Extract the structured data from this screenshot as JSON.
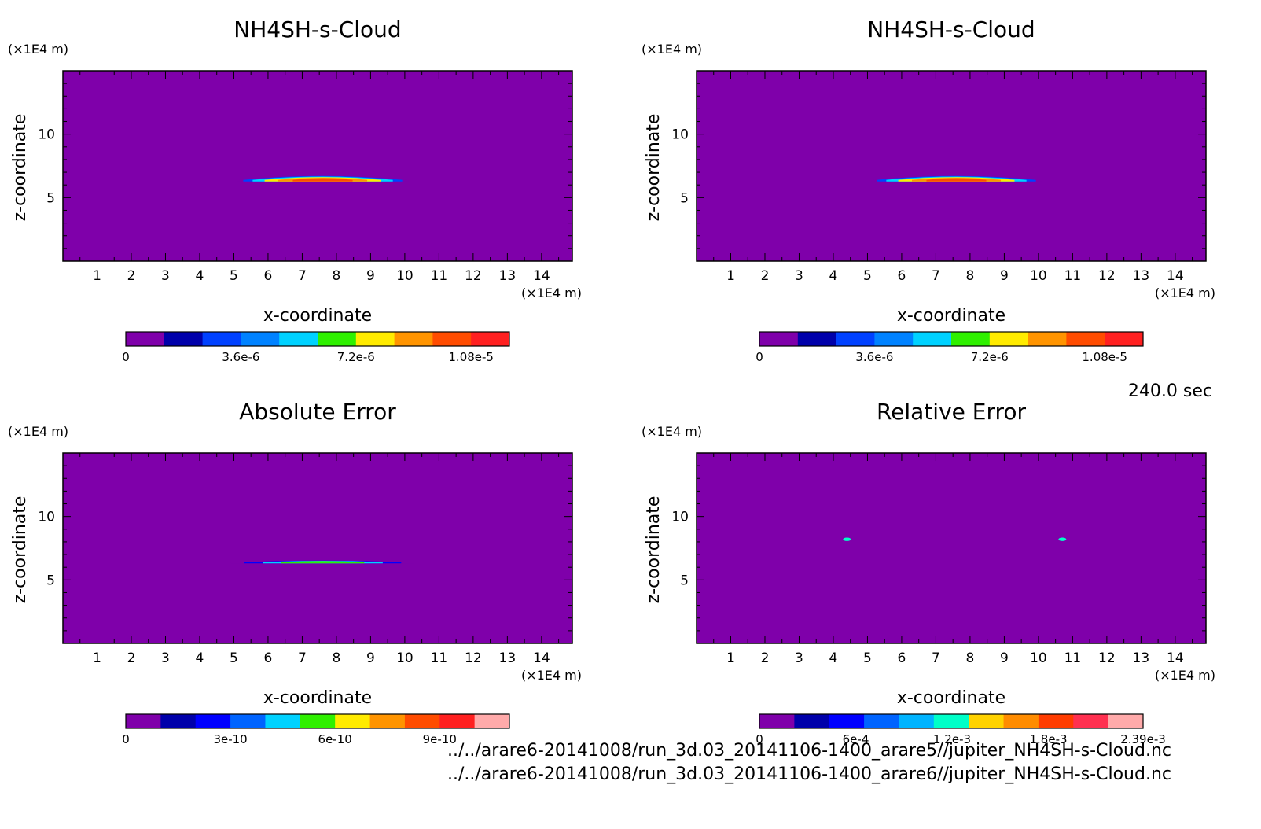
{
  "time_label": "240.0 sec",
  "footer": {
    "line1": "../../arare6-20141008/run_3d.03_20141106-1400_arare5//jupiter_NH4SH-s-Cloud.nc",
    "line2": "../../arare6-20141008/run_3d.03_20141106-1400_arare6//jupiter_NH4SH-s-Cloud.nc"
  },
  "colors": {
    "background_field": "#7f00aa"
  },
  "chart_data": [
    {
      "type": "heatmap",
      "title": "NH4SH-s-Cloud",
      "xlabel": "x-coordinate",
      "ylabel": "z-coordinate",
      "x_unit": "(×1E4 m)",
      "y_unit": "(×1E4 m)",
      "xlim": [
        0,
        14.9
      ],
      "ylim": [
        0,
        15
      ],
      "x_ticks": [
        "1",
        "2",
        "3",
        "4",
        "5",
        "6",
        "7",
        "8",
        "9",
        "10",
        "11",
        "12",
        "13",
        "14"
      ],
      "y_ticks": [
        "5",
        "10"
      ],
      "feature": {
        "shape": "lens",
        "x_center": 7.6,
        "z_center": 6.4,
        "x_halfwidth": 2.5,
        "z_extent": 0.55,
        "peak": 1.1e-05
      },
      "colorbar": {
        "colors": [
          "#7f00aa",
          "#0000aa",
          "#0041ff",
          "#0082ff",
          "#00d2ff",
          "#2ff000",
          "#ffeb00",
          "#ff9400",
          "#ff4c00",
          "#ff2020"
        ],
        "tick_labels": [
          "0",
          "3.6e-6",
          "7.2e-6",
          "1.08e-5"
        ],
        "tick_values": [
          0,
          3.6e-06,
          7.2e-06,
          1.08e-05
        ],
        "vmax": 1.2e-05
      }
    },
    {
      "type": "heatmap",
      "title": "NH4SH-s-Cloud",
      "xlabel": "x-coordinate",
      "ylabel": "z-coordinate",
      "x_unit": "(×1E4 m)",
      "y_unit": "(×1E4 m)",
      "xlim": [
        0,
        14.9
      ],
      "ylim": [
        0,
        15
      ],
      "x_ticks": [
        "1",
        "2",
        "3",
        "4",
        "5",
        "6",
        "7",
        "8",
        "9",
        "10",
        "11",
        "12",
        "13",
        "14"
      ],
      "y_ticks": [
        "5",
        "10"
      ],
      "feature": {
        "shape": "lens",
        "x_center": 7.6,
        "z_center": 6.4,
        "x_halfwidth": 2.5,
        "z_extent": 0.55,
        "peak": 1.1e-05
      },
      "colorbar": {
        "colors": [
          "#7f00aa",
          "#0000aa",
          "#0041ff",
          "#0082ff",
          "#00d2ff",
          "#2ff000",
          "#ffeb00",
          "#ff9400",
          "#ff4c00",
          "#ff2020"
        ],
        "tick_labels": [
          "0",
          "3.6e-6",
          "7.2e-6",
          "1.08e-5"
        ],
        "tick_values": [
          0,
          3.6e-06,
          7.2e-06,
          1.08e-05
        ],
        "vmax": 1.2e-05
      }
    },
    {
      "type": "heatmap",
      "title": "Absolute Error",
      "xlabel": "x-coordinate",
      "ylabel": "z-coordinate",
      "x_unit": "(×1E4 m)",
      "y_unit": "(×1E4 m)",
      "xlim": [
        0,
        14.9
      ],
      "ylim": [
        0,
        15
      ],
      "x_ticks": [
        "1",
        "2",
        "3",
        "4",
        "5",
        "6",
        "7",
        "8",
        "9",
        "10",
        "11",
        "12",
        "13",
        "14"
      ],
      "y_ticks": [
        "5",
        "10"
      ],
      "feature": {
        "shape": "thin-lens",
        "x_center": 7.6,
        "z_center": 6.4,
        "x_halfwidth": 2.7,
        "z_extent": 0.22,
        "peak": 6e-10
      },
      "colorbar": {
        "colors": [
          "#7f00aa",
          "#0000aa",
          "#0000ff",
          "#0064ff",
          "#00d2ff",
          "#2ff000",
          "#ffeb00",
          "#ff9400",
          "#ff4c00",
          "#ff2020",
          "#ffaaaa"
        ],
        "tick_labels": [
          "0",
          "3e-10",
          "6e-10",
          "9e-10"
        ],
        "tick_values": [
          0,
          3e-10,
          6e-10,
          9e-10
        ],
        "vmax": 1.1e-09
      }
    },
    {
      "type": "heatmap",
      "title": "Relative Error",
      "xlabel": "x-coordinate",
      "ylabel": "z-coordinate",
      "x_unit": "(×1E4 m)",
      "y_unit": "(×1E4 m)",
      "xlim": [
        0,
        14.9
      ],
      "ylim": [
        0,
        15
      ],
      "x_ticks": [
        "1",
        "2",
        "3",
        "4",
        "5",
        "6",
        "7",
        "8",
        "9",
        "10",
        "11",
        "12",
        "13",
        "14"
      ],
      "y_ticks": [
        "5",
        "10"
      ],
      "feature": {
        "shape": "dots",
        "points": [
          [
            4.4,
            8.2
          ],
          [
            10.7,
            8.2
          ]
        ],
        "peak": 0.0012
      },
      "colorbar": {
        "colors": [
          "#7f00aa",
          "#0000aa",
          "#0000ff",
          "#0064ff",
          "#00b4ff",
          "#00ffc8",
          "#ffd200",
          "#ff8c00",
          "#ff3c00",
          "#ff3050",
          "#ffaaaa"
        ],
        "tick_labels": [
          "0",
          "6e-4",
          "1.2e-3",
          "1.8e-3",
          "2.39e-3"
        ],
        "tick_values": [
          0,
          0.0006,
          0.0012,
          0.0018,
          0.00239
        ],
        "vmax": 0.00239
      }
    }
  ]
}
